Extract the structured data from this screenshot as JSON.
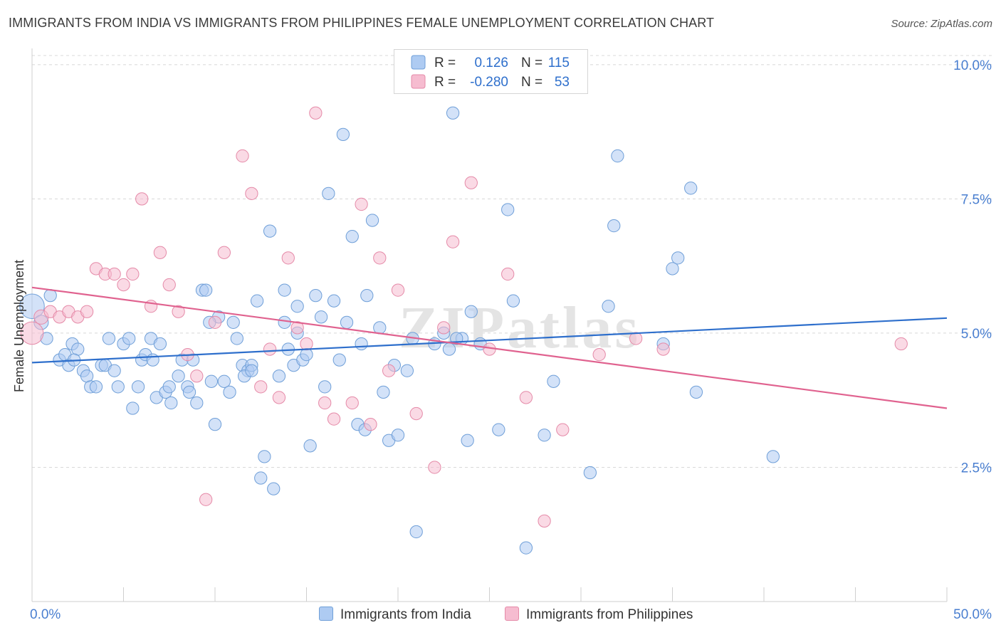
{
  "title": "IMMIGRANTS FROM INDIA VS IMMIGRANTS FROM PHILIPPINES FEMALE UNEMPLOYMENT CORRELATION CHART",
  "source": "Source: ZipAtlas.com",
  "watermark": "ZIPatlas",
  "colors": {
    "india_fill": "#aecbf2",
    "india_stroke": "#6f9fd8",
    "india_line": "#2e6fcc",
    "phil_fill": "#f6bcd0",
    "phil_stroke": "#e58aa8",
    "phil_line": "#e0628f",
    "axis_text": "#4a7fd0",
    "grid": "#d8d8d8"
  },
  "legend": {
    "rows": [
      {
        "r_label": "R =",
        "r_value": "0.126",
        "n_label": "N =",
        "n_value": "115"
      },
      {
        "r_label": "R =",
        "r_value": "-0.280",
        "n_label": "N =",
        "n_value": "53"
      }
    ]
  },
  "bottom_legend": {
    "india": "Immigrants from India",
    "philippines": "Immigrants from Philippines"
  },
  "chart_data": {
    "type": "scatter",
    "title": "IMMIGRANTS FROM INDIA VS IMMIGRANTS FROM PHILIPPINES FEMALE UNEMPLOYMENT CORRELATION CHART",
    "xlabel": "",
    "ylabel": "Female Unemployment",
    "xlim": [
      0,
      50
    ],
    "ylim": [
      0,
      10.25
    ],
    "x_tick_labels": [
      "0.0%",
      "50.0%"
    ],
    "y_ticks": [
      2.5,
      5.0,
      7.5,
      10.0
    ],
    "y_tick_labels": [
      "2.5%",
      "5.0%",
      "7.5%",
      "10.0%"
    ],
    "grid": true,
    "series": [
      {
        "name": "Immigrants from India",
        "trend": {
          "x": [
            0,
            50
          ],
          "y": [
            4.45,
            5.28
          ]
        },
        "points": [
          [
            0.0,
            5.5,
            24
          ],
          [
            0.5,
            5.2,
            14
          ],
          [
            1.0,
            5.7,
            12
          ],
          [
            0.8,
            4.9,
            12
          ],
          [
            1.5,
            4.5,
            12
          ],
          [
            1.8,
            4.6,
            12
          ],
          [
            2.0,
            4.4,
            12
          ],
          [
            2.2,
            4.8,
            12
          ],
          [
            2.5,
            4.7,
            12
          ],
          [
            2.3,
            4.5,
            12
          ],
          [
            2.8,
            4.3,
            12
          ],
          [
            3.0,
            4.2,
            12
          ],
          [
            3.2,
            4.0,
            12
          ],
          [
            3.5,
            4.0,
            12
          ],
          [
            3.8,
            4.4,
            12
          ],
          [
            4.0,
            4.4,
            12
          ],
          [
            4.2,
            4.9,
            12
          ],
          [
            4.5,
            4.3,
            12
          ],
          [
            4.7,
            4.0,
            12
          ],
          [
            5.0,
            4.8,
            12
          ],
          [
            5.3,
            4.9,
            12
          ],
          [
            5.5,
            3.6,
            12
          ],
          [
            5.8,
            4.0,
            12
          ],
          [
            6.0,
            4.5,
            12
          ],
          [
            6.2,
            4.6,
            12
          ],
          [
            6.5,
            4.9,
            12
          ],
          [
            6.6,
            4.5,
            12
          ],
          [
            6.8,
            3.8,
            12
          ],
          [
            7.0,
            4.8,
            12
          ],
          [
            7.3,
            3.9,
            12
          ],
          [
            7.5,
            4.0,
            12
          ],
          [
            7.6,
            3.7,
            12
          ],
          [
            8.0,
            4.2,
            12
          ],
          [
            8.2,
            4.5,
            12
          ],
          [
            8.5,
            4.0,
            12
          ],
          [
            8.6,
            3.9,
            12
          ],
          [
            8.8,
            4.5,
            12
          ],
          [
            9.0,
            3.7,
            12
          ],
          [
            9.3,
            5.8,
            12
          ],
          [
            9.5,
            5.8,
            12
          ],
          [
            9.8,
            4.1,
            12
          ],
          [
            10.0,
            3.3,
            12
          ],
          [
            10.2,
            5.3,
            12
          ],
          [
            10.5,
            4.1,
            12
          ],
          [
            10.8,
            3.9,
            12
          ],
          [
            11.0,
            5.2,
            12
          ],
          [
            11.2,
            4.9,
            12
          ],
          [
            11.5,
            4.4,
            12
          ],
          [
            11.8,
            4.3,
            12
          ],
          [
            11.6,
            4.2,
            12
          ],
          [
            12.0,
            4.4,
            12
          ],
          [
            12.3,
            5.6,
            12
          ],
          [
            12.5,
            2.3,
            12
          ],
          [
            12.7,
            2.7,
            12
          ],
          [
            13.0,
            6.9,
            12
          ],
          [
            13.2,
            2.1,
            12
          ],
          [
            13.5,
            4.2,
            12
          ],
          [
            13.8,
            5.2,
            12
          ],
          [
            13.8,
            5.8,
            12
          ],
          [
            14.0,
            4.7,
            12
          ],
          [
            14.3,
            4.4,
            12
          ],
          [
            14.5,
            5.5,
            12
          ],
          [
            14.8,
            4.5,
            12
          ],
          [
            15.0,
            4.6,
            12
          ],
          [
            15.2,
            2.9,
            12
          ],
          [
            15.5,
            5.7,
            12
          ],
          [
            15.8,
            5.3,
            12
          ],
          [
            16.0,
            4.0,
            12
          ],
          [
            16.2,
            7.6,
            12
          ],
          [
            16.5,
            5.6,
            12
          ],
          [
            16.8,
            4.5,
            12
          ],
          [
            17.0,
            8.7,
            12
          ],
          [
            17.2,
            5.2,
            12
          ],
          [
            17.5,
            6.8,
            12
          ],
          [
            17.8,
            3.3,
            12
          ],
          [
            18.0,
            4.8,
            12
          ],
          [
            18.2,
            3.2,
            12
          ],
          [
            18.3,
            5.7,
            12
          ],
          [
            18.6,
            7.1,
            12
          ],
          [
            19.0,
            5.1,
            12
          ],
          [
            19.2,
            3.9,
            12
          ],
          [
            19.5,
            3.0,
            12
          ],
          [
            19.8,
            4.4,
            12
          ],
          [
            20.0,
            3.1,
            12
          ],
          [
            20.5,
            4.3,
            12
          ],
          [
            21.0,
            1.3,
            12
          ],
          [
            22.0,
            4.8,
            12
          ],
          [
            22.5,
            5.0,
            12
          ],
          [
            23.0,
            9.1,
            12
          ],
          [
            23.8,
            3.0,
            12
          ],
          [
            24.0,
            5.4,
            12
          ],
          [
            25.5,
            3.2,
            12
          ],
          [
            26.0,
            7.3,
            12
          ],
          [
            26.3,
            5.6,
            12
          ],
          [
            27.0,
            1.0,
            12
          ],
          [
            28.0,
            3.1,
            12
          ],
          [
            28.5,
            4.1,
            12
          ],
          [
            30.5,
            2.4,
            12
          ],
          [
            31.5,
            5.5,
            12
          ],
          [
            31.8,
            7.0,
            12
          ],
          [
            32.0,
            8.3,
            12
          ],
          [
            34.5,
            4.8,
            12
          ],
          [
            35.0,
            6.2,
            12
          ],
          [
            35.3,
            6.4,
            12
          ],
          [
            36.0,
            7.7,
            12
          ],
          [
            36.3,
            3.9,
            12
          ],
          [
            40.5,
            2.7,
            12
          ],
          [
            23.5,
            4.9,
            12
          ],
          [
            24.5,
            4.8,
            12
          ],
          [
            23.2,
            4.9,
            12
          ],
          [
            20.8,
            4.9,
            12
          ],
          [
            22.8,
            4.7,
            12
          ],
          [
            14.5,
            5.0,
            12
          ],
          [
            12.0,
            4.3,
            12
          ],
          [
            9.7,
            5.2,
            12
          ]
        ]
      },
      {
        "name": "Immigrants from Philippines",
        "trend": {
          "x": [
            0,
            50
          ],
          "y": [
            5.85,
            3.6
          ]
        },
        "points": [
          [
            0.0,
            5.0,
            22
          ],
          [
            0.5,
            5.3,
            14
          ],
          [
            1.0,
            5.4,
            12
          ],
          [
            1.5,
            5.3,
            12
          ],
          [
            2.0,
            5.4,
            12
          ],
          [
            2.5,
            5.3,
            12
          ],
          [
            3.0,
            5.4,
            12
          ],
          [
            3.5,
            6.2,
            12
          ],
          [
            4.0,
            6.1,
            12
          ],
          [
            4.5,
            6.1,
            12
          ],
          [
            5.0,
            5.9,
            12
          ],
          [
            5.5,
            6.1,
            12
          ],
          [
            6.0,
            7.5,
            12
          ],
          [
            6.5,
            5.5,
            12
          ],
          [
            7.0,
            6.5,
            12
          ],
          [
            7.5,
            5.9,
            12
          ],
          [
            8.0,
            5.4,
            12
          ],
          [
            8.5,
            4.6,
            12
          ],
          [
            9.0,
            4.2,
            12
          ],
          [
            9.5,
            1.9,
            12
          ],
          [
            10.0,
            5.2,
            12
          ],
          [
            10.5,
            6.5,
            12
          ],
          [
            11.5,
            8.3,
            12
          ],
          [
            12.0,
            7.6,
            12
          ],
          [
            12.5,
            4.0,
            12
          ],
          [
            13.0,
            4.7,
            12
          ],
          [
            13.5,
            3.8,
            12
          ],
          [
            14.0,
            6.4,
            12
          ],
          [
            14.5,
            5.1,
            12
          ],
          [
            15.0,
            4.8,
            12
          ],
          [
            15.5,
            9.1,
            12
          ],
          [
            16.0,
            3.7,
            12
          ],
          [
            16.5,
            3.4,
            12
          ],
          [
            17.5,
            3.7,
            12
          ],
          [
            18.0,
            7.4,
            12
          ],
          [
            18.5,
            3.3,
            12
          ],
          [
            19.0,
            6.4,
            12
          ],
          [
            19.5,
            4.3,
            12
          ],
          [
            20.0,
            5.8,
            12
          ],
          [
            21.0,
            3.5,
            12
          ],
          [
            22.0,
            2.5,
            12
          ],
          [
            22.5,
            5.1,
            12
          ],
          [
            23.0,
            6.7,
            12
          ],
          [
            24.0,
            7.8,
            12
          ],
          [
            25.0,
            4.7,
            12
          ],
          [
            26.0,
            6.1,
            12
          ],
          [
            27.0,
            3.8,
            12
          ],
          [
            28.0,
            1.5,
            12
          ],
          [
            29.0,
            3.2,
            12
          ],
          [
            31.0,
            4.6,
            12
          ],
          [
            33.0,
            4.9,
            12
          ],
          [
            34.5,
            4.7,
            12
          ],
          [
            47.5,
            4.8,
            12
          ]
        ]
      }
    ]
  }
}
